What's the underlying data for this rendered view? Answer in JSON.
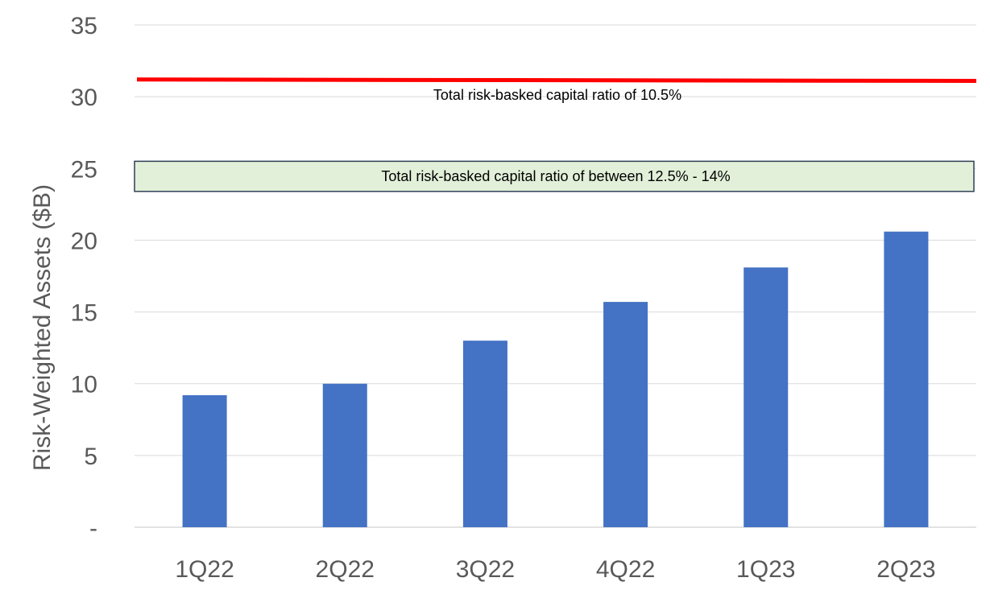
{
  "chart_data": {
    "type": "bar",
    "categories": [
      "1Q22",
      "2Q22",
      "3Q22",
      "4Q22",
      "1Q23",
      "2Q23"
    ],
    "values": [
      9.2,
      10.0,
      13.0,
      15.7,
      18.1,
      20.6
    ],
    "ylabel": "Risk-Weighted Assets ($B)",
    "ylim": [
      0,
      35
    ],
    "yticks": [
      0,
      5,
      10,
      15,
      20,
      25,
      30,
      35
    ],
    "ytick_labels": [
      "-",
      "5",
      "10",
      "15",
      "20",
      "25",
      "30",
      "35"
    ],
    "grid": true,
    "legend": "none",
    "colors": {
      "bar": "#4472C4",
      "threshold_line": "#FF0000",
      "band_fill": "#E2F0D9",
      "band_border": "#2F3F55",
      "grid": "#D9D9D9",
      "axis_text": "#595959"
    },
    "annotations": {
      "threshold": {
        "value_start": 31.2,
        "value_end": 31.1,
        "label": "Total risk-basked capital ratio of 10.5%"
      },
      "band": {
        "range": [
          23.4,
          25.5
        ],
        "label": "Total risk-basked capital ratio of between 12.5% - 14%"
      }
    }
  }
}
